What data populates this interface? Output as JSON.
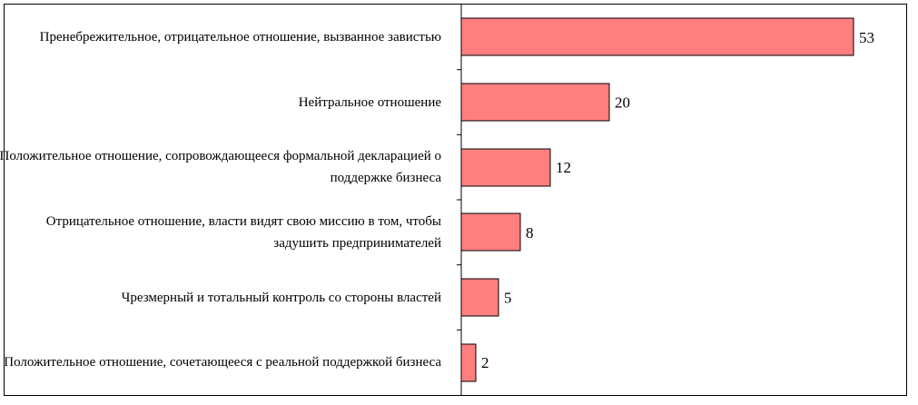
{
  "chart_data": {
    "type": "bar",
    "orientation": "horizontal",
    "categories": [
      "Пренебрежительное, отрицательное отношение, вызванное завистью",
      "Нейтральное отношение",
      "Положительное отношение, сопровождающееся формальной декларацией о поддержке бизнеса",
      "Отрицательное отношение, власти видят свою миссию в том, чтобы задушить предпринимателей",
      "Чрезмерный и тотальный контроль со стороны властей",
      "Положительное отношение, сочетающееся с реальной поддержкой бизнеса"
    ],
    "values": [
      53,
      20,
      12,
      8,
      5,
      2
    ],
    "value_labels": [
      "53",
      "20",
      "12",
      "8",
      "5",
      "2"
    ],
    "xlim": [
      0,
      53
    ],
    "grid": false,
    "legend": "none",
    "bar_color": "#ff7f7f",
    "bar_edge_color": "#000000"
  }
}
